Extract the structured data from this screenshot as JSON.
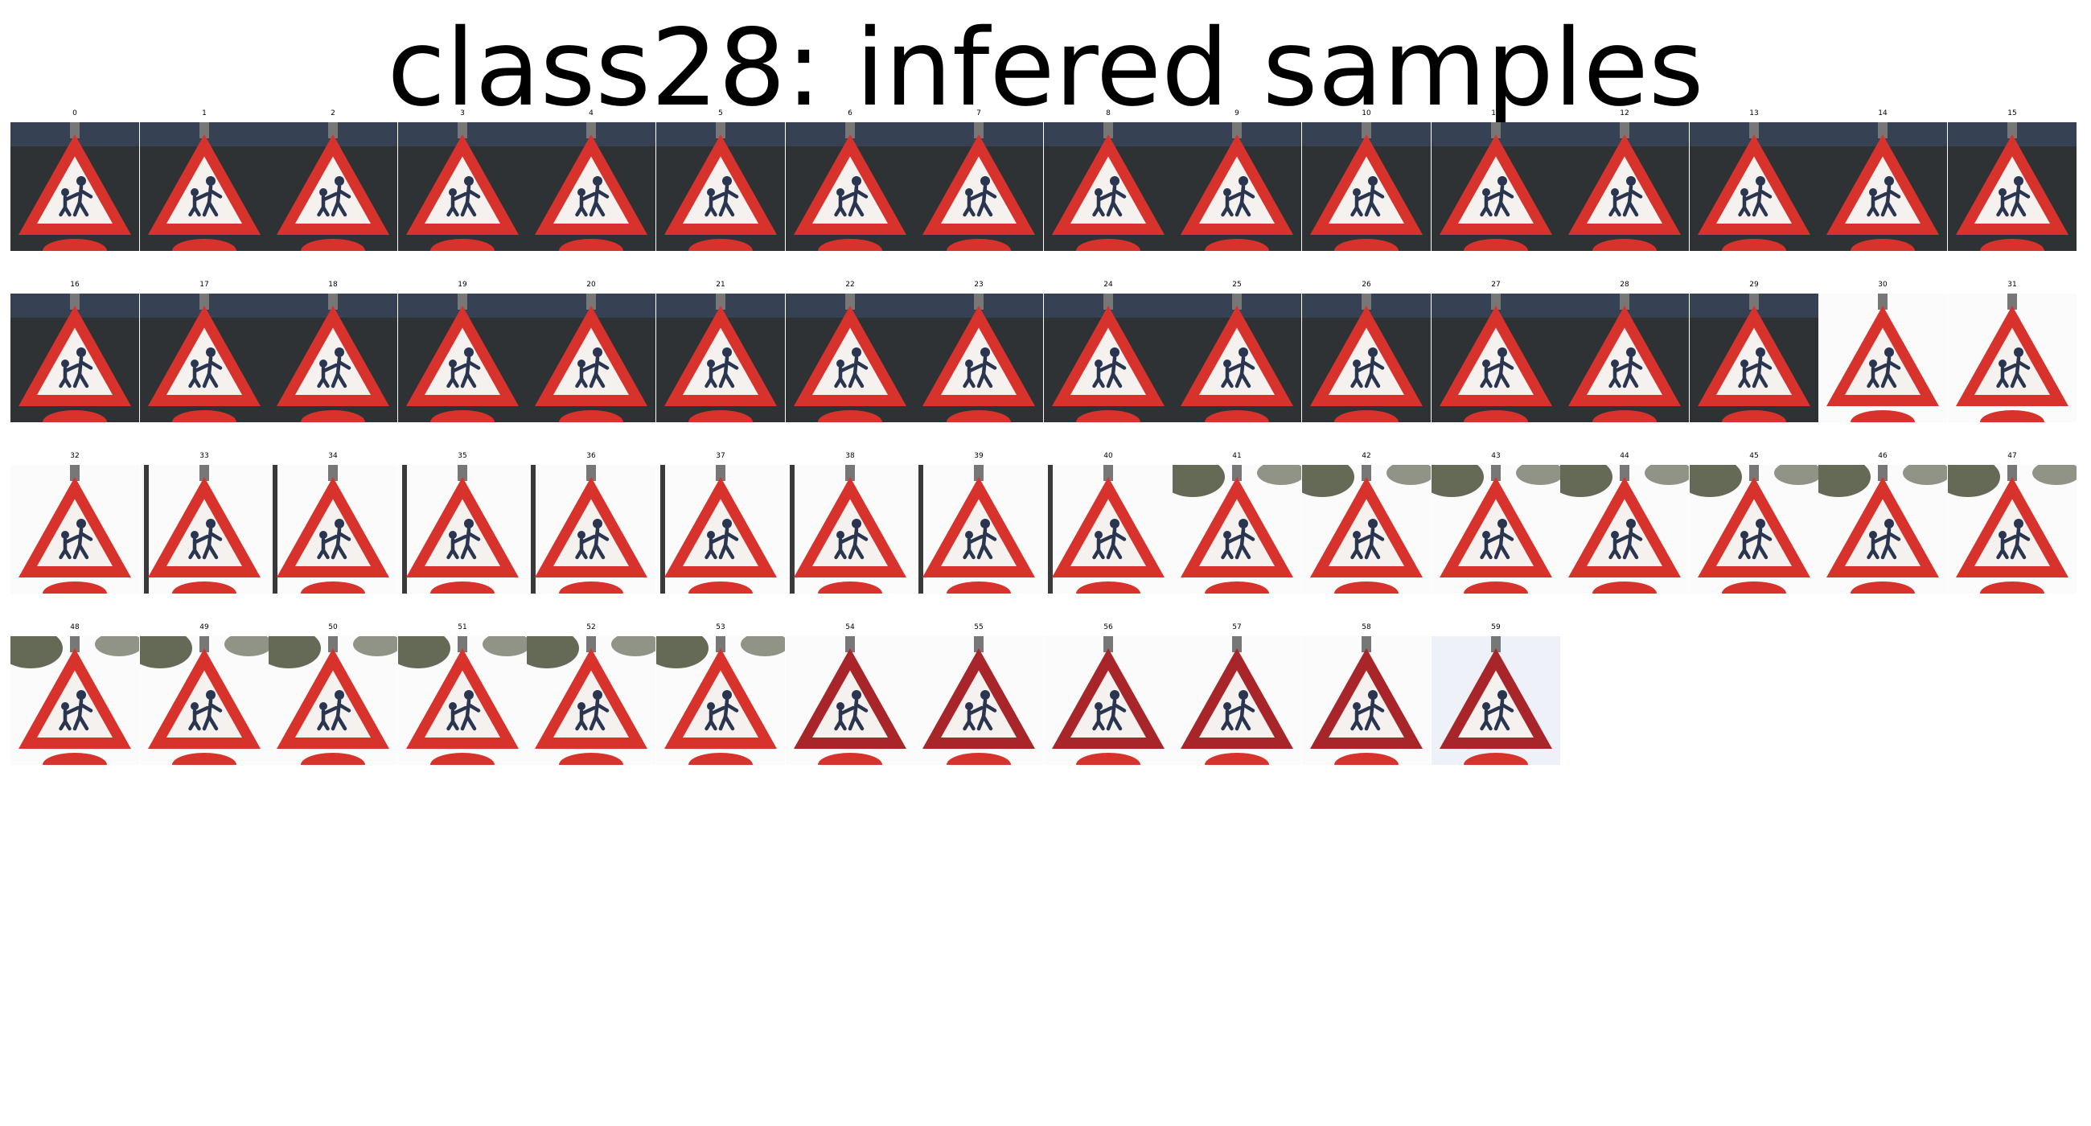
{
  "figure": {
    "title": "class28: infered samples"
  },
  "samples": [
    {
      "label": "0",
      "bg": "dark"
    },
    {
      "label": "1",
      "bg": "dark"
    },
    {
      "label": "2",
      "bg": "dark"
    },
    {
      "label": "3",
      "bg": "dark"
    },
    {
      "label": "4",
      "bg": "dark"
    },
    {
      "label": "5",
      "bg": "dark"
    },
    {
      "label": "6",
      "bg": "dark"
    },
    {
      "label": "7",
      "bg": "dark"
    },
    {
      "label": "8",
      "bg": "dark"
    },
    {
      "label": "9",
      "bg": "dark"
    },
    {
      "label": "10",
      "bg": "dark"
    },
    {
      "label": "11",
      "bg": "dark"
    },
    {
      "label": "12",
      "bg": "dark"
    },
    {
      "label": "13",
      "bg": "dark"
    },
    {
      "label": "14",
      "bg": "dark"
    },
    {
      "label": "15",
      "bg": "dark"
    },
    {
      "label": "16",
      "bg": "dark"
    },
    {
      "label": "17",
      "bg": "dark"
    },
    {
      "label": "18",
      "bg": "dark"
    },
    {
      "label": "19",
      "bg": "dark"
    },
    {
      "label": "20",
      "bg": "dark"
    },
    {
      "label": "21",
      "bg": "dark"
    },
    {
      "label": "22",
      "bg": "dark"
    },
    {
      "label": "23",
      "bg": "dark"
    },
    {
      "label": "24",
      "bg": "dark"
    },
    {
      "label": "25",
      "bg": "dark"
    },
    {
      "label": "26",
      "bg": "dark"
    },
    {
      "label": "27",
      "bg": "dark"
    },
    {
      "label": "28",
      "bg": "dark"
    },
    {
      "label": "29",
      "bg": "dark"
    },
    {
      "label": "30",
      "bg": "light"
    },
    {
      "label": "31",
      "bg": "light"
    },
    {
      "label": "32",
      "bg": "light"
    },
    {
      "label": "33",
      "bg": "pole"
    },
    {
      "label": "34",
      "bg": "pole"
    },
    {
      "label": "35",
      "bg": "pole"
    },
    {
      "label": "36",
      "bg": "pole"
    },
    {
      "label": "37",
      "bg": "pole"
    },
    {
      "label": "38",
      "bg": "pole"
    },
    {
      "label": "39",
      "bg": "pole"
    },
    {
      "label": "40",
      "bg": "pole"
    },
    {
      "label": "41",
      "bg": "foliage"
    },
    {
      "label": "42",
      "bg": "foliage"
    },
    {
      "label": "43",
      "bg": "foliage"
    },
    {
      "label": "44",
      "bg": "foliage"
    },
    {
      "label": "45",
      "bg": "foliage"
    },
    {
      "label": "46",
      "bg": "foliage"
    },
    {
      "label": "47",
      "bg": "foliage"
    },
    {
      "label": "48",
      "bg": "foliage"
    },
    {
      "label": "49",
      "bg": "foliage"
    },
    {
      "label": "50",
      "bg": "foliage"
    },
    {
      "label": "51",
      "bg": "foliage"
    },
    {
      "label": "52",
      "bg": "foliage"
    },
    {
      "label": "53",
      "bg": "foliage"
    },
    {
      "label": "54",
      "bg": "light"
    },
    {
      "label": "55",
      "bg": "light"
    },
    {
      "label": "56",
      "bg": "light"
    },
    {
      "label": "57",
      "bg": "light"
    },
    {
      "label": "58",
      "bg": "light"
    },
    {
      "label": "59",
      "bg": "sky"
    }
  ],
  "colors": {
    "sign_border": "#d8322c",
    "sign_border_dark": "#a8262a",
    "sign_fill": "#f4f1ee",
    "figure": "#2a3550",
    "bg_dark": "#2f3234",
    "bg_light": "#fbfbfb",
    "bg_sky": "#eef2f8",
    "foliage": "#4a5038"
  }
}
